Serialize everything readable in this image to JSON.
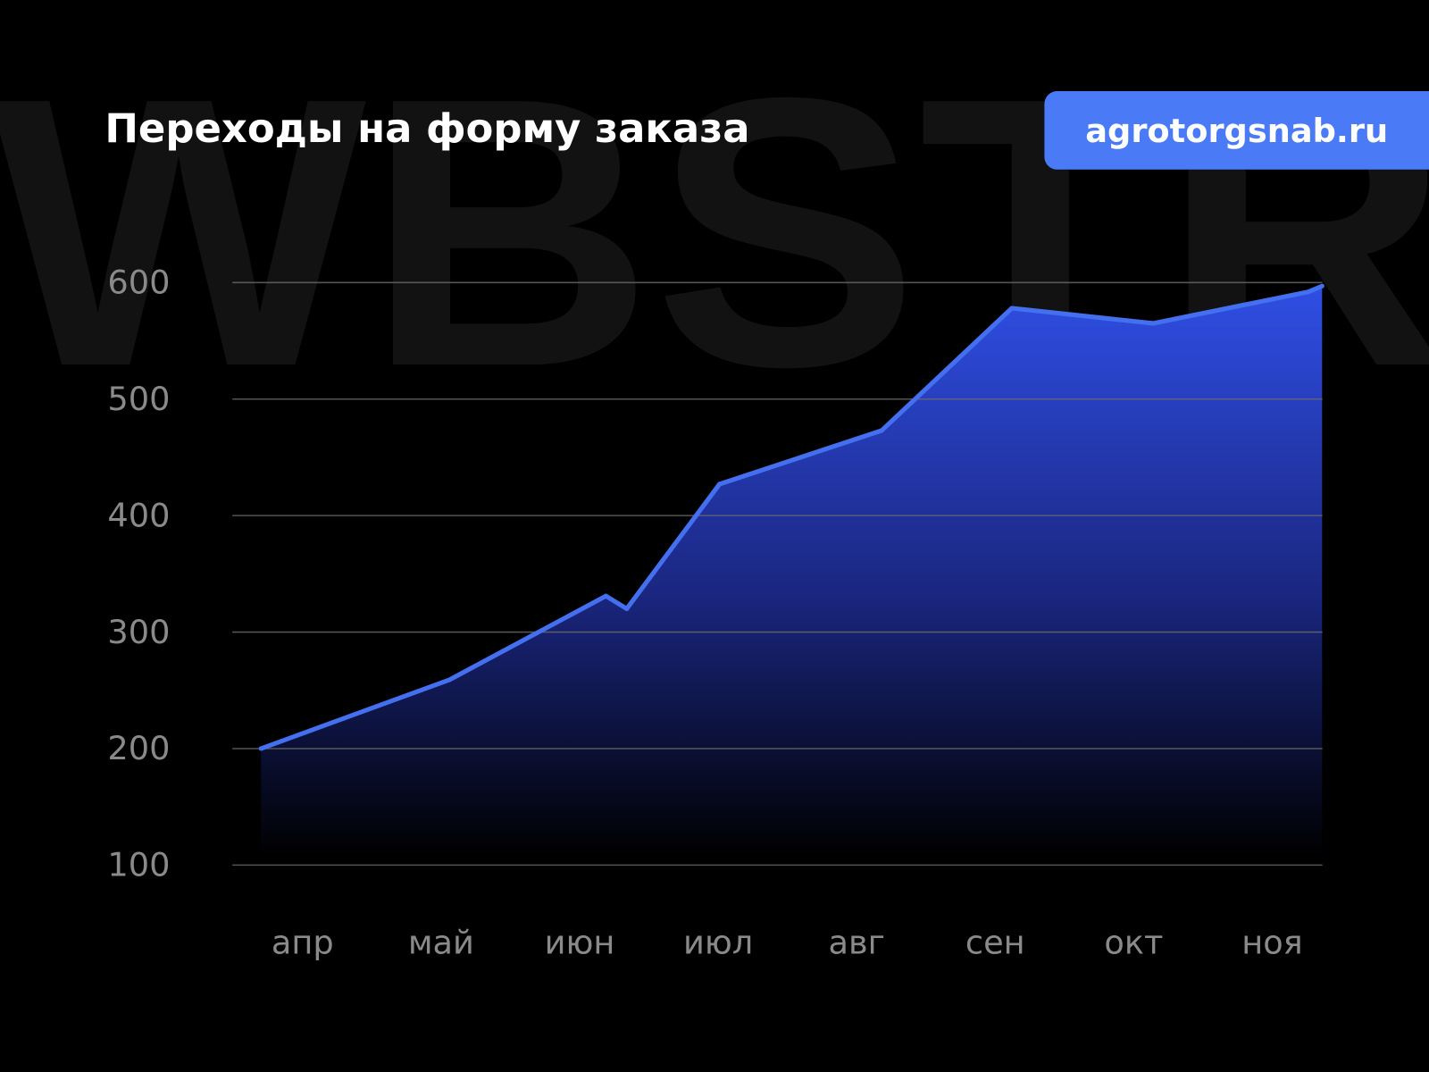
{
  "watermark": "WBSTR",
  "badge": {
    "label": "agrotorgsnab.ru",
    "color": "#4a7af5"
  },
  "chart_data": {
    "type": "area",
    "title": "Переходы на форму заказа",
    "xlabel": "",
    "ylabel": "",
    "categories": [
      "апр",
      "май",
      "июн",
      "июл",
      "авг",
      "сен",
      "окт",
      "ноя"
    ],
    "y_ticks": [
      "600",
      "500",
      "400",
      "300",
      "200",
      "100"
    ],
    "ylim": [
      100,
      600
    ],
    "grid": true,
    "line_color": "#4470f0",
    "fill_color": "#3050e8",
    "points": [
      {
        "x": -0.3,
        "y": 200
      },
      {
        "x": 1.06,
        "y": 259
      },
      {
        "x": 2.19,
        "y": 331
      },
      {
        "x": 2.34,
        "y": 320
      },
      {
        "x": 3.01,
        "y": 427
      },
      {
        "x": 4.18,
        "y": 473
      },
      {
        "x": 5.12,
        "y": 578
      },
      {
        "x": 6.14,
        "y": 565
      },
      {
        "x": 7.26,
        "y": 592
      },
      {
        "x": 7.36,
        "y": 597
      }
    ]
  }
}
